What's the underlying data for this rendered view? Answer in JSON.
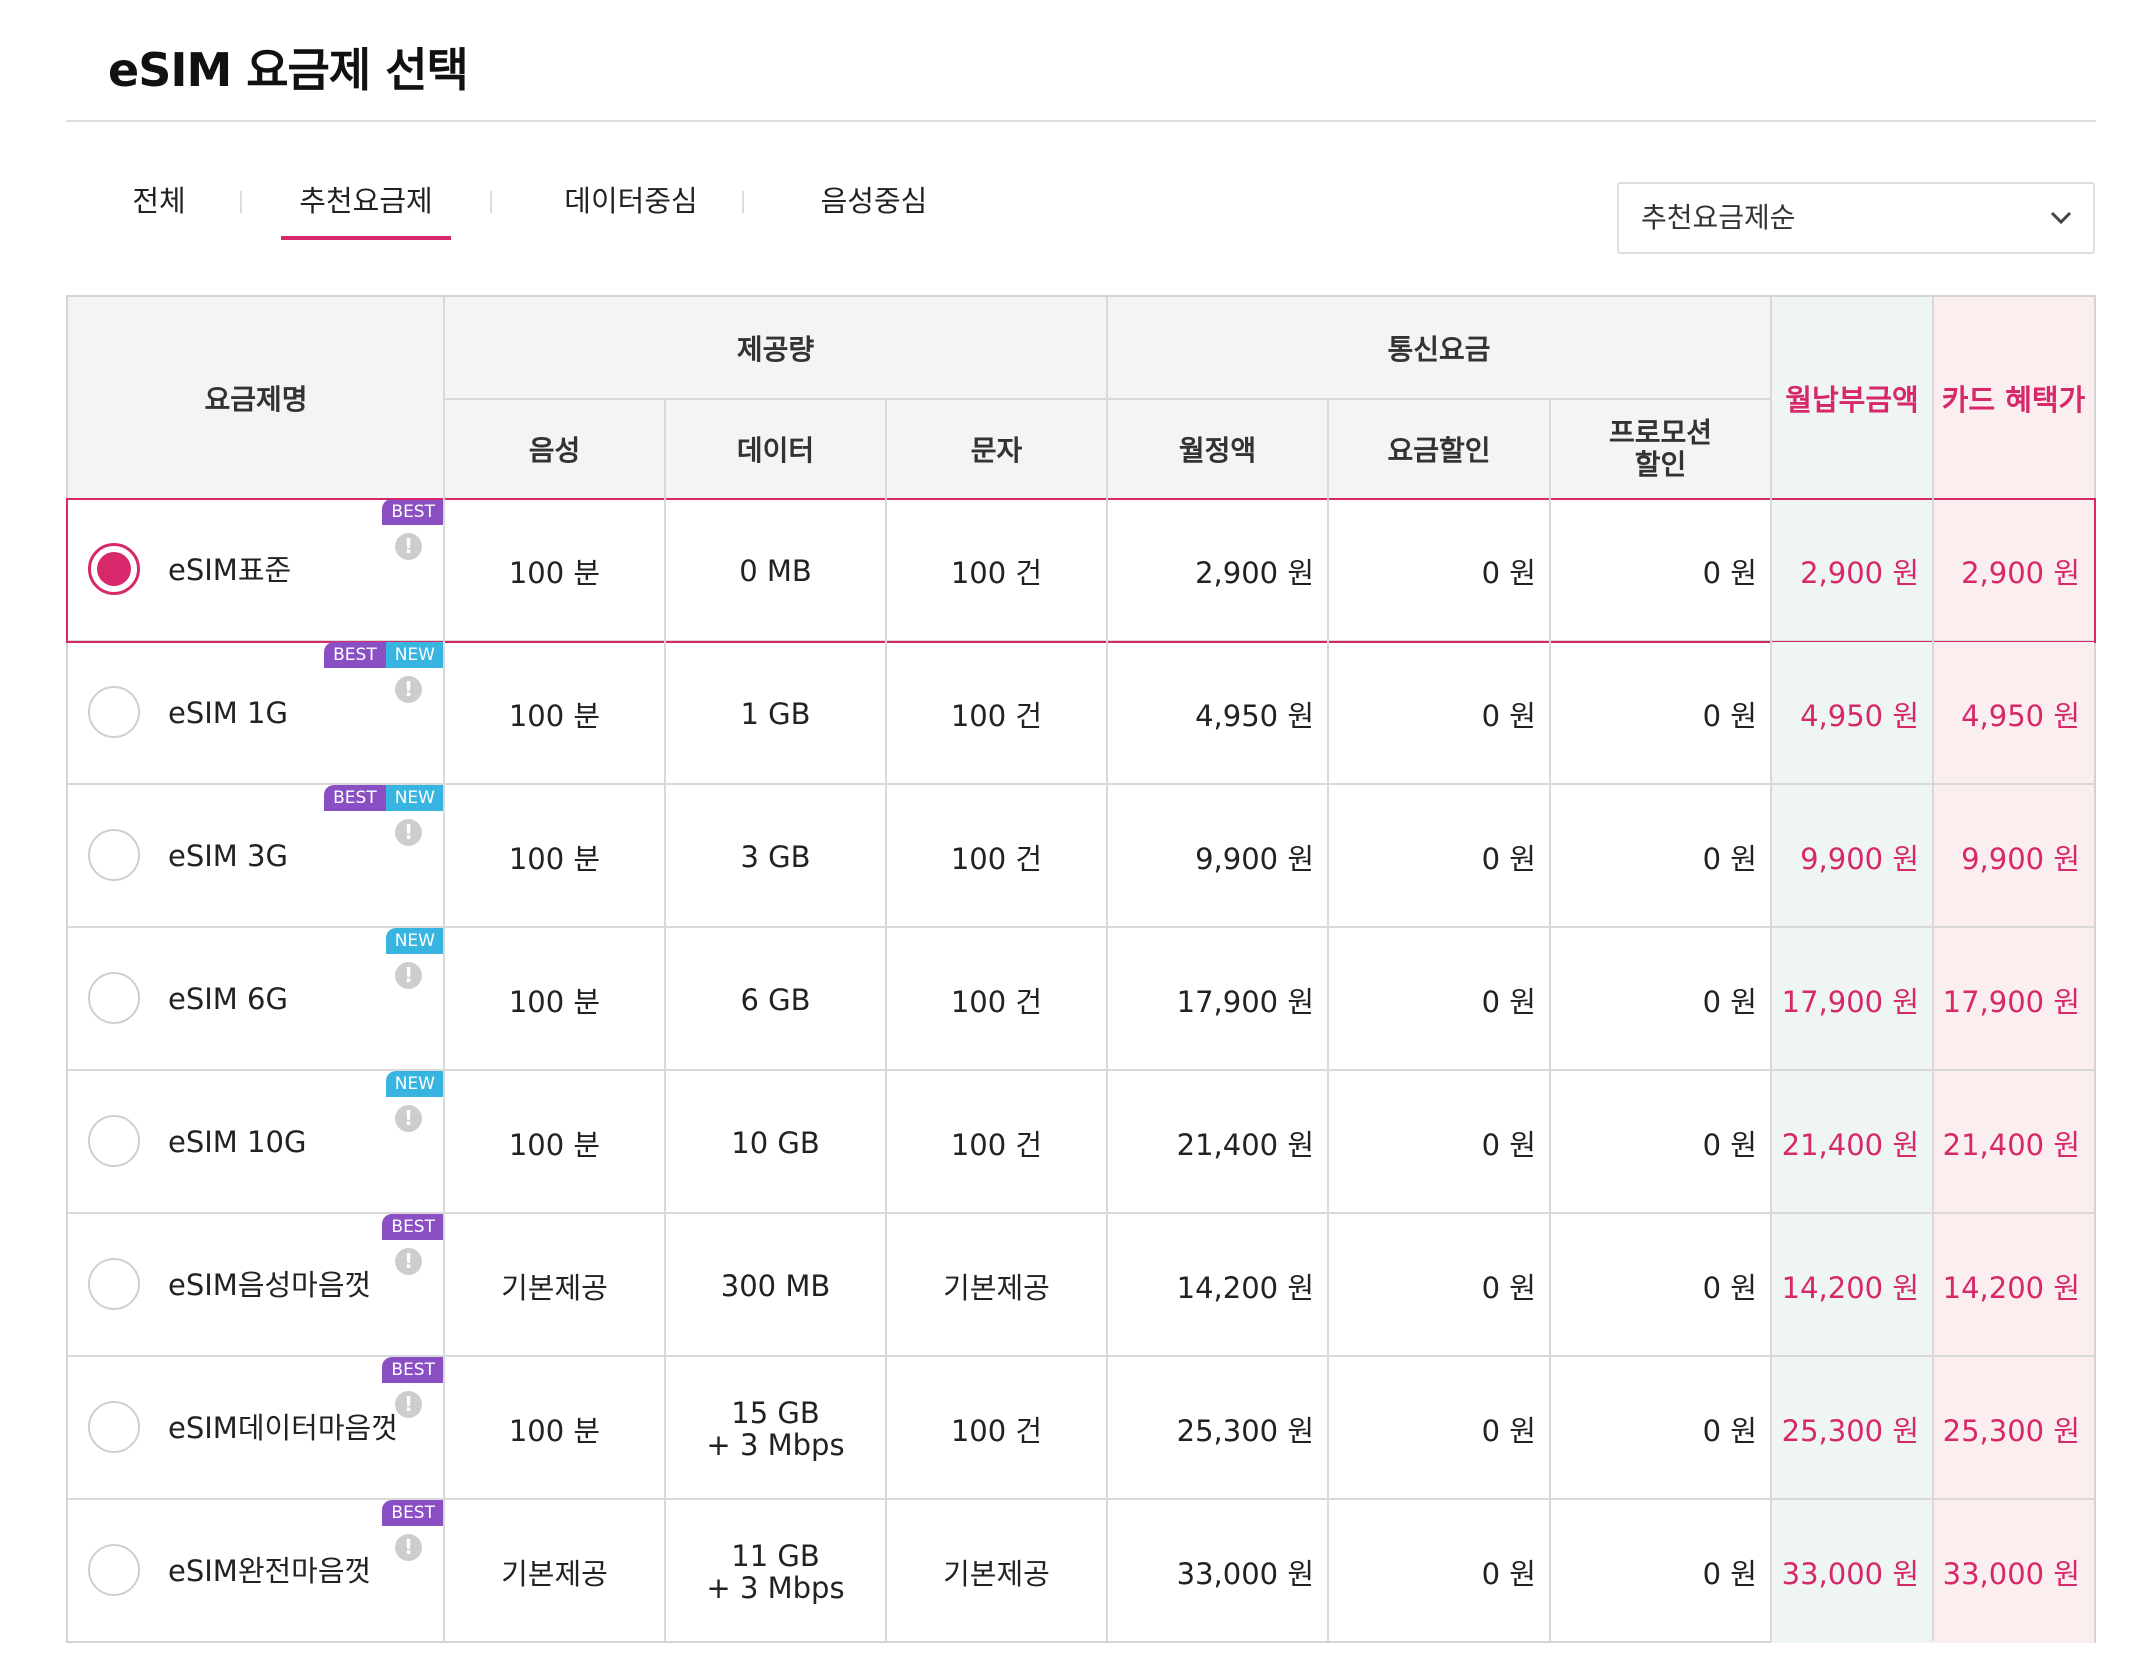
{
  "page": {
    "title": "eSIM 요금제 선택"
  },
  "tabs": [
    {
      "label": "전체",
      "active": false
    },
    {
      "label": "추천요금제",
      "active": true
    },
    {
      "label": "데이터중심",
      "active": false
    },
    {
      "label": "음성중심",
      "active": false
    }
  ],
  "sort": {
    "selected": "추천요금제순"
  },
  "colors": {
    "accent": "#d6286b",
    "best_badge": "#8b4fc4",
    "new_badge": "#38b4e0",
    "mint_col": "#eff5f3",
    "rose_col": "#fbeeee"
  },
  "table": {
    "headers": {
      "plan_name": "요금제명",
      "provided": "제공량",
      "comm_fee": "통신요금",
      "voice": "음성",
      "data": "데이터",
      "sms": "문자",
      "monthly": "월정액",
      "discount": "요금할인",
      "promo_line1": "프로모션",
      "promo_line2": "할인",
      "monthly_payment": "월납부금액",
      "card_benefit": "카드 혜택가"
    },
    "badge_labels": {
      "best": "BEST",
      "new": "NEW"
    },
    "info_icon_glyph": "!",
    "rows": [
      {
        "name": "eSIM표준",
        "selected": true,
        "best": true,
        "new": false,
        "voice": "100 분",
        "data": "0 MB",
        "data2": "",
        "sms": "100 건",
        "monthly": "2,900 원",
        "discount": "0 원",
        "promo": "0 원",
        "payment": "2,900 원",
        "card": "2,900 원"
      },
      {
        "name": "eSIM 1G",
        "selected": false,
        "best": true,
        "new": true,
        "voice": "100 분",
        "data": "1 GB",
        "data2": "",
        "sms": "100 건",
        "monthly": "4,950 원",
        "discount": "0 원",
        "promo": "0 원",
        "payment": "4,950 원",
        "card": "4,950 원"
      },
      {
        "name": "eSIM 3G",
        "selected": false,
        "best": true,
        "new": true,
        "voice": "100 분",
        "data": "3 GB",
        "data2": "",
        "sms": "100 건",
        "monthly": "9,900 원",
        "discount": "0 원",
        "promo": "0 원",
        "payment": "9,900 원",
        "card": "9,900 원"
      },
      {
        "name": "eSIM 6G",
        "selected": false,
        "best": false,
        "new": true,
        "voice": "100 분",
        "data": "6 GB",
        "data2": "",
        "sms": "100 건",
        "monthly": "17,900 원",
        "discount": "0 원",
        "promo": "0 원",
        "payment": "17,900 원",
        "card": "17,900 원"
      },
      {
        "name": "eSIM 10G",
        "selected": false,
        "best": false,
        "new": true,
        "voice": "100 분",
        "data": "10 GB",
        "data2": "",
        "sms": "100 건",
        "monthly": "21,400 원",
        "discount": "0 원",
        "promo": "0 원",
        "payment": "21,400 원",
        "card": "21,400 원"
      },
      {
        "name": "eSIM음성마음껏",
        "selected": false,
        "best": true,
        "new": false,
        "voice": "기본제공",
        "data": "300 MB",
        "data2": "",
        "sms": "기본제공",
        "monthly": "14,200 원",
        "discount": "0 원",
        "promo": "0 원",
        "payment": "14,200 원",
        "card": "14,200 원"
      },
      {
        "name": "eSIM데이터마음껏",
        "selected": false,
        "best": true,
        "new": false,
        "voice": "100 분",
        "data": "15 GB",
        "data2": "+ 3 Mbps",
        "sms": "100 건",
        "monthly": "25,300 원",
        "discount": "0 원",
        "promo": "0 원",
        "payment": "25,300 원",
        "card": "25,300 원"
      },
      {
        "name": "eSIM완전마음껏",
        "selected": false,
        "best": true,
        "new": false,
        "voice": "기본제공",
        "data": "11 GB",
        "data2": "+ 3 Mbps",
        "sms": "기본제공",
        "monthly": "33,000 원",
        "discount": "0 원",
        "promo": "0 원",
        "payment": "33,000 원",
        "card": "33,000 원"
      }
    ]
  }
}
